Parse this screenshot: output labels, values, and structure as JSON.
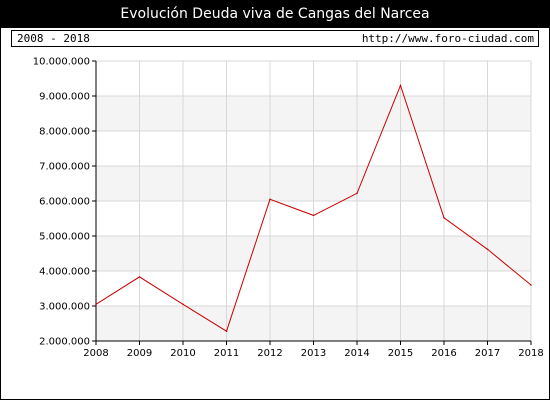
{
  "header": {
    "title": "Evolución Deuda viva de Cangas del Narcea",
    "period": "2008 - 2018",
    "source": "http://www.foro-ciudad.com"
  },
  "colors": {
    "line": "#cc0000",
    "band": "#f4f4f4",
    "grid": "#d8d8d8"
  },
  "chart_data": {
    "type": "line",
    "title": "Evolución Deuda viva de Cangas del Narcea",
    "xlabel": "",
    "ylabel": "",
    "ylim": [
      2000000,
      10000000
    ],
    "grid": true,
    "x_tick_labels": [
      "2008",
      "2009",
      "2010",
      "2011",
      "2012",
      "2013",
      "2014",
      "2015",
      "2016",
      "2017",
      "2018"
    ],
    "y_tick_labels": [
      "2.000.000",
      "3.000.000",
      "4.000.000",
      "5.000.000",
      "6.000.000",
      "7.000.000",
      "8.000.000",
      "9.000.000",
      "10.000.000"
    ],
    "series": [
      {
        "x": [
          2008,
          2009,
          2010,
          2011,
          2012,
          2013,
          2014,
          2015,
          2016,
          2017,
          2018
        ],
        "values": [
          3050000,
          3830000,
          3050000,
          2280000,
          6050000,
          5590000,
          6220000,
          9300000,
          5520000,
          4620000,
          3600000
        ]
      }
    ]
  }
}
